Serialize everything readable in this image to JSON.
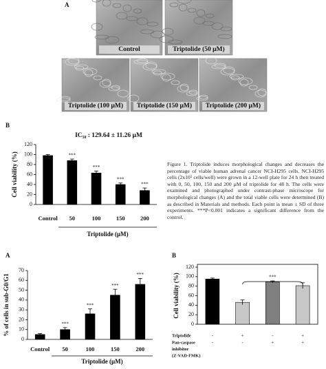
{
  "panels": [
    "A",
    "B",
    "A",
    "B"
  ],
  "micrographs": {
    "labels": [
      "Control",
      "Triptolide (50 μM)",
      "Triptolide (100 μM)",
      "Triptolide (150 μM)",
      "Triptolide (200 μM)"
    ]
  },
  "caption": "Figure 1. Triptolide induces morphological changes and decreases the percentage of viable human adrenal cancer NCI-H295 cells. NCI-H295 cells (2x10⁵ cells/well) were grown in a 12-well plate for 24 h then treated with 0, 50, 100, 150 and 200 μM of triptolide for 48 h. The cells were examined and photographed under contrast-phase microscope for morphological changes (A) and the total viable cells were determined (B) as described in Materials and methods. Each point is mean ± SD of three experiments. ***P<0.001 indicates a significant difference from the control.",
  "chart_data": [
    {
      "type": "bar",
      "annotation": "IC₅₀ : 129.64 ± 11.26 μM",
      "ylabel": "Cell viability (%)",
      "xlabel": "Triptolide (μM)",
      "categories": [
        "Control",
        "50",
        "100",
        "150",
        "200"
      ],
      "values": [
        98,
        88,
        63,
        40,
        28
      ],
      "errors": [
        2,
        3,
        4,
        3,
        5
      ],
      "significance": [
        null,
        "***",
        "***",
        "***",
        "***"
      ],
      "color": "#000000",
      "ylim": [
        0,
        120
      ],
      "yticks": [
        0,
        20,
        40,
        60,
        80,
        100,
        120
      ]
    },
    {
      "type": "bar",
      "ylabel": "% of cells in sub-G0/G1",
      "xlabel": "Triptolide (μM)",
      "categories": [
        "Control",
        "50",
        "100",
        "150",
        "200"
      ],
      "values": [
        5,
        10,
        26,
        45,
        56
      ],
      "errors": [
        1,
        2,
        5,
        6,
        6
      ],
      "significance": [
        null,
        "***",
        "***",
        "***",
        "***"
      ],
      "color": "#000000",
      "ylim": [
        0,
        70
      ],
      "yticks": [
        0,
        10,
        20,
        30,
        40,
        50,
        60,
        70
      ]
    },
    {
      "type": "bar",
      "ylabel": "Cell viability (%)",
      "values": [
        95,
        46,
        89,
        81
      ],
      "errors": [
        2,
        5,
        2,
        6
      ],
      "colors": [
        "#000000",
        "#c8c8c8",
        "#808080",
        "#c8c8c8"
      ],
      "bracket_label": "***",
      "rows": [
        {
          "label": [
            "Triptolide"
          ],
          "marks": [
            "-",
            "+",
            "-",
            "+"
          ]
        },
        {
          "label": [
            "Pan-caspase",
            "inhibitor",
            "(Z-VAD-FMK)"
          ],
          "marks": [
            "-",
            "-",
            "+",
            "+"
          ]
        }
      ],
      "ylim": [
        0,
        120
      ],
      "yticks": [
        0,
        20,
        40,
        60,
        80,
        100,
        120
      ]
    }
  ]
}
